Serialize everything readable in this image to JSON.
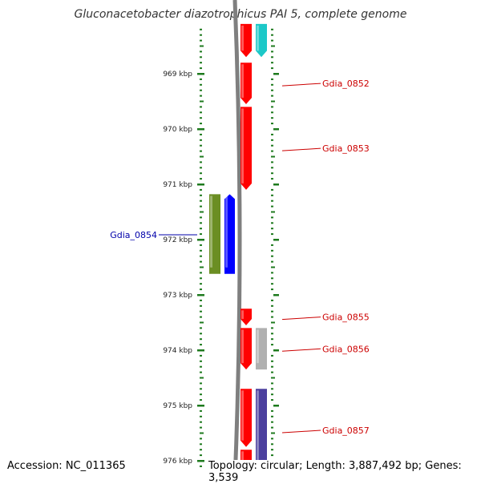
{
  "title": "Gluconacetobacter diazotrophicus PAI 5, complete genome",
  "footer": {
    "accession": "Accession: NC_011365",
    "topology": "Topology: circular; Length: 3,887,492 bp; Genes: 3,539"
  },
  "colors": {
    "ruler": "#1e7a1e",
    "backbone": "#7f7f7f",
    "label_right": "#cc0000",
    "label_left": "#0000aa",
    "red_gene": "#ff0000",
    "cyan_gene": "#1cc8c8",
    "olive_gene": "#6b8e23",
    "blue_gene": "#0000ff",
    "gray_gene": "#b0b0b0",
    "purple_gene": "#4b3f9e"
  },
  "ruler": {
    "kbp_start": 968.2,
    "kbp_end": 976.1,
    "tick_labels": [
      "969 kbp",
      "970 kbp",
      "971 kbp",
      "972 kbp",
      "973 kbp",
      "974 kbp",
      "975 kbp",
      "976 kbp"
    ]
  },
  "genes": [
    {
      "name": "",
      "start": 968.1,
      "end": 968.7,
      "track": "fwd",
      "color": "cyan_gene",
      "direction": "down"
    },
    {
      "name": "",
      "start": 968.1,
      "end": 968.7,
      "track": "rev",
      "color": "red_gene",
      "direction": "down"
    },
    {
      "name": "Gdia_0852",
      "start": 968.8,
      "end": 969.55,
      "track": "rev",
      "color": "red_gene",
      "direction": "down",
      "label_side": "right"
    },
    {
      "name": "Gdia_0853",
      "start": 969.6,
      "end": 971.1,
      "track": "rev",
      "color": "red_gene",
      "direction": "down",
      "label_side": "right"
    },
    {
      "name": "Gdia_0854",
      "start": 971.18,
      "end": 972.62,
      "track": "left_outer",
      "color": "olive_gene",
      "direction": "none",
      "label_side": "left"
    },
    {
      "name": "",
      "start": 971.18,
      "end": 972.62,
      "track": "left_inner",
      "color": "blue_gene",
      "direction": "up"
    },
    {
      "name": "Gdia_0855",
      "start": 973.25,
      "end": 973.55,
      "track": "rev",
      "color": "red_gene",
      "direction": "down",
      "label_side": "right"
    },
    {
      "name": "",
      "start": 973.6,
      "end": 974.35,
      "track": "rev",
      "color": "red_gene",
      "direction": "down"
    },
    {
      "name": "Gdia_0856",
      "start": 973.6,
      "end": 974.35,
      "track": "fwd",
      "color": "gray_gene",
      "direction": "none",
      "label_side": "right"
    },
    {
      "name": "",
      "start": 974.7,
      "end": 975.75,
      "track": "rev",
      "color": "red_gene",
      "direction": "down"
    },
    {
      "name": "Gdia_0857",
      "start": 974.7,
      "end": 976.2,
      "track": "fwd",
      "color": "purple_gene",
      "direction": "none",
      "label_side": "right"
    },
    {
      "name": "",
      "start": 975.8,
      "end": 976.2,
      "track": "rev",
      "color": "red_gene",
      "direction": "none"
    }
  ]
}
